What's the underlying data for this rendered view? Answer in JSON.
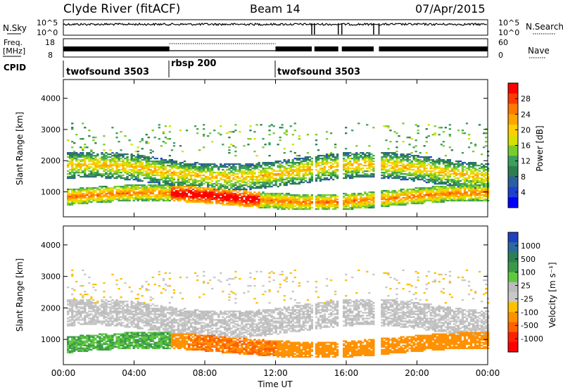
{
  "header": {
    "station": "Clyde River (fitACF)",
    "beam": "Beam 14",
    "date": "07/Apr/2015"
  },
  "noise_panel": {
    "left_label": "N.Sky",
    "right_label": "N.Search",
    "left_ticks": [
      "10^5",
      "10^0"
    ],
    "right_ticks": [
      "10^5",
      "10^0"
    ]
  },
  "freq_panel": {
    "label_line1": "Freq.",
    "label_line2": "[MHz]",
    "left_ticks": [
      "18",
      "8"
    ],
    "right_label": "Nave",
    "right_ticks": [
      "60",
      "0"
    ]
  },
  "cpid_panel": {
    "label": "CPID",
    "segments": [
      {
        "name": "twofsound 3503",
        "start_hour": 0,
        "end_hour": 6
      },
      {
        "name": "rbsp 200",
        "start_hour": 6,
        "end_hour": 12
      },
      {
        "name": "twofsound 3503",
        "start_hour": 12,
        "end_hour": 24
      }
    ]
  },
  "power_panel": {
    "ylabel": "Slant Range [km]",
    "colorbar_label": "Power [dB]",
    "colorbar_ticks": [
      "28",
      "24",
      "20",
      "16",
      "12",
      "8",
      "4"
    ],
    "colorbar_colors": [
      "#ff0000",
      "#ff3a00",
      "#ff7a00",
      "#ffa500",
      "#ffd000",
      "#d8e000",
      "#7acc2a",
      "#3aa05a",
      "#2e7d4e",
      "#2a5fa0",
      "#2040d0",
      "#0000ff"
    ]
  },
  "velocity_panel": {
    "ylabel": "Slant Range [km]",
    "colorbar_label": "Velocity [m s⁻¹]",
    "colorbar_ticks": [
      "1000",
      "500",
      "100",
      "25",
      "-25",
      "-100",
      "-500",
      "-1000"
    ],
    "colorbar_colors": [
      "#2040c0",
      "#2a6aa0",
      "#2e8050",
      "#3a9a4a",
      "#60c840",
      "#bcbcbc",
      "#c8c8c8",
      "#ffc000",
      "#ff9000",
      "#ff6000",
      "#ff2000",
      "#ff0000"
    ]
  },
  "x_axis": {
    "ticks": [
      "00:00",
      "04:00",
      "08:00",
      "12:00",
      "16:00",
      "20:00",
      "00:00"
    ],
    "label": "Time UT"
  },
  "chart_data": {
    "type": "heatmap",
    "x_unit": "hours UT",
    "x_range": [
      0,
      24
    ],
    "y_range_km": [
      200,
      4600
    ],
    "y_ticks_km": [
      1000,
      2000,
      3000,
      4000
    ],
    "data_gaps_hours": [
      [
        14.05,
        14.2
      ],
      [
        15.55,
        15.75
      ],
      [
        17.55,
        17.85
      ]
    ],
    "power_db_range": [
      0,
      30
    ],
    "velocity_range_mps": [
      -1000,
      1000
    ]
  }
}
